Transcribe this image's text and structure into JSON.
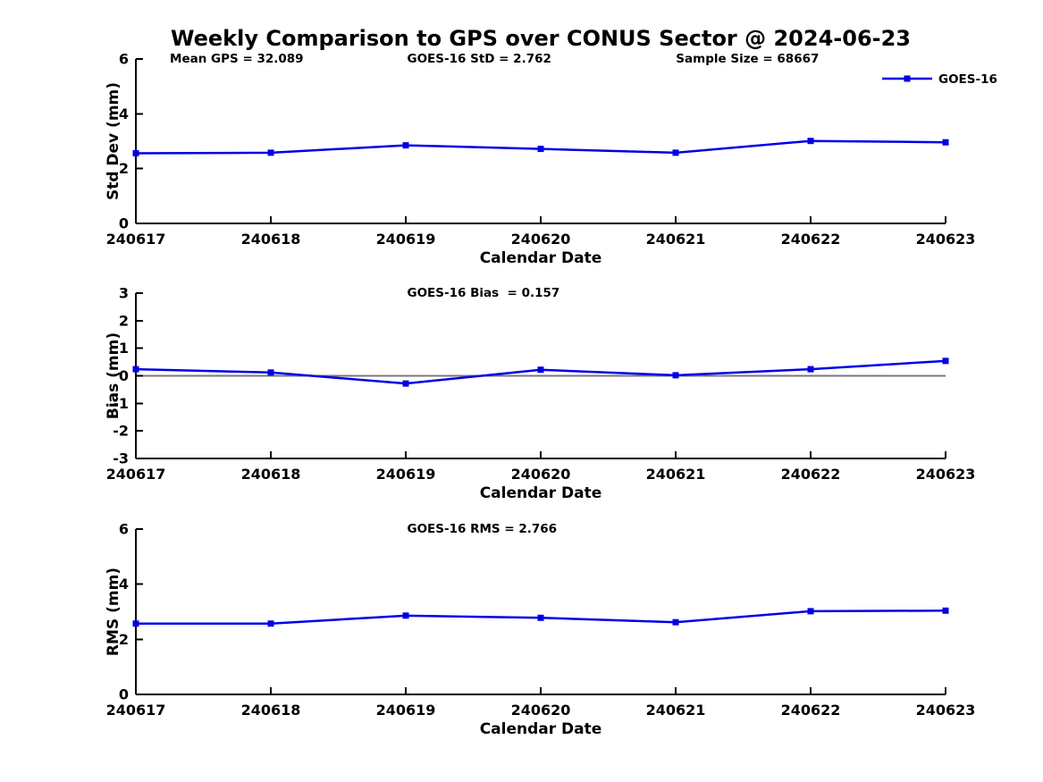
{
  "title": "Weekly Comparison to GPS over CONUS Sector @ 2024-06-23",
  "colors": {
    "series": "#0000E6",
    "axis": "#000000",
    "text": "#000000",
    "zero_line": "#787878",
    "background": "#FFFFFF"
  },
  "legend": {
    "label": "GOES-16"
  },
  "chart_data": [
    {
      "type": "line",
      "panel": "std-dev",
      "annotations": [
        "Mean GPS = 32.089",
        "GOES-16 StD = 2.762",
        "Sample Size = 68667"
      ],
      "xlabel": "Calendar Date",
      "ylabel": "Std Dev (mm)",
      "categories": [
        "240617",
        "240618",
        "240619",
        "240620",
        "240621",
        "240622",
        "240623"
      ],
      "series": [
        {
          "name": "GOES-16",
          "values": [
            2.56,
            2.58,
            2.85,
            2.72,
            2.58,
            3.01,
            2.96
          ]
        }
      ],
      "ylim": [
        0,
        6
      ],
      "yticks": [
        0,
        2,
        4,
        6
      ],
      "grid": false,
      "show_legend": true,
      "legend_position": "top-right",
      "zero_line": false
    },
    {
      "type": "line",
      "panel": "bias",
      "annotations": [
        "GOES-16 Bias  = 0.157"
      ],
      "xlabel": "Calendar Date",
      "ylabel": "Bias (mm)",
      "categories": [
        "240617",
        "240618",
        "240619",
        "240620",
        "240621",
        "240622",
        "240623"
      ],
      "series": [
        {
          "name": "GOES-16",
          "values": [
            0.24,
            0.12,
            -0.28,
            0.22,
            0.02,
            0.24,
            0.54
          ]
        }
      ],
      "ylim": [
        -3,
        3
      ],
      "yticks": [
        -3,
        -2,
        -1,
        0,
        1,
        2,
        3
      ],
      "grid": false,
      "show_legend": false,
      "zero_line": true
    },
    {
      "type": "line",
      "panel": "rms",
      "annotations": [
        "GOES-16 RMS = 2.766"
      ],
      "xlabel": "Calendar Date",
      "ylabel": "RMS (mm)",
      "categories": [
        "240617",
        "240618",
        "240619",
        "240620",
        "240621",
        "240622",
        "240623"
      ],
      "series": [
        {
          "name": "GOES-16",
          "values": [
            2.57,
            2.57,
            2.86,
            2.78,
            2.62,
            3.02,
            3.04
          ]
        }
      ],
      "ylim": [
        0,
        6
      ],
      "yticks": [
        0,
        2,
        4,
        6
      ],
      "grid": false,
      "show_legend": false,
      "zero_line": false
    }
  ]
}
